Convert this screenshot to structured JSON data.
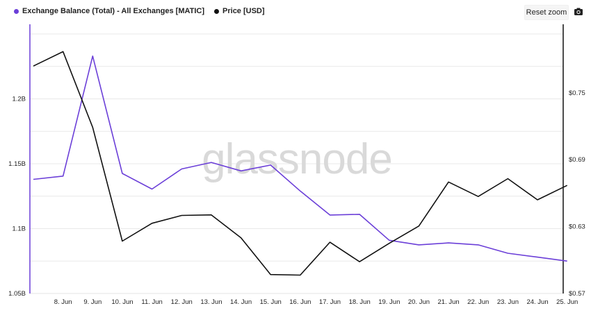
{
  "legend": [
    {
      "label": "Exchange Balance (Total) - All Exchanges [MATIC]",
      "color": "#6b3fd8"
    },
    {
      "label": "Price [USD]",
      "color": "#111111"
    }
  ],
  "toolbar": {
    "reset_zoom_label": "Reset zoom",
    "camera_icon": "camera-icon"
  },
  "watermark": "glassnode",
  "chart_data": {
    "type": "line",
    "x": [
      "7. Jun",
      "8. Jun",
      "9. Jun",
      "10. Jun",
      "11. Jun",
      "12. Jun",
      "13. Jun",
      "14. Jun",
      "15. Jun",
      "16. Jun",
      "17. Jun",
      "18. Jun",
      "19. Jun",
      "20. Jun",
      "21. Jun",
      "22. Jun",
      "23. Jun",
      "24. Jun",
      "25. Jun"
    ],
    "xticks": [
      "8. Jun",
      "9. Jun",
      "10. Jun",
      "11. Jun",
      "12. Jun",
      "13. Jun",
      "14. Jun",
      "15. Jun",
      "16. Jun",
      "17. Jun",
      "18. Jun",
      "19. Jun",
      "20. Jun",
      "21. Jun",
      "22. Jun",
      "23. Jun",
      "24. Jun",
      "25. Jun"
    ],
    "series": [
      {
        "name": "Exchange Balance (Total) - All Exchanges [MATIC]",
        "axis": "left",
        "color": "#6b3fd8",
        "values": [
          1.138,
          1.1405,
          1.233,
          1.1425,
          1.1305,
          1.146,
          1.151,
          1.1445,
          1.149,
          1.129,
          1.1105,
          1.111,
          1.091,
          1.0875,
          1.089,
          1.0875,
          1.081,
          1.078,
          1.075
        ]
      },
      {
        "name": "Price [USD]",
        "axis": "right",
        "color": "#111111",
        "values": [
          0.774,
          0.787,
          0.719,
          0.617,
          0.633,
          0.64,
          0.6405,
          0.62,
          0.587,
          0.5865,
          0.616,
          0.5985,
          0.615,
          0.6305,
          0.67,
          0.657,
          0.673,
          0.654,
          0.667
        ]
      }
    ],
    "left_axis": {
      "ticks": [
        "1.05B",
        "1.1B",
        "1.15B",
        "1.2B"
      ],
      "tick_values": [
        1.05,
        1.1,
        1.15,
        1.2
      ],
      "range": [
        1.05,
        1.2575
      ]
    },
    "right_axis": {
      "ticks": [
        "$0.57",
        "$0.63",
        "$0.69",
        "$0.75"
      ],
      "tick_values": [
        0.57,
        0.63,
        0.69,
        0.75
      ],
      "range": [
        0.57,
        0.8115
      ]
    },
    "grid": true
  }
}
